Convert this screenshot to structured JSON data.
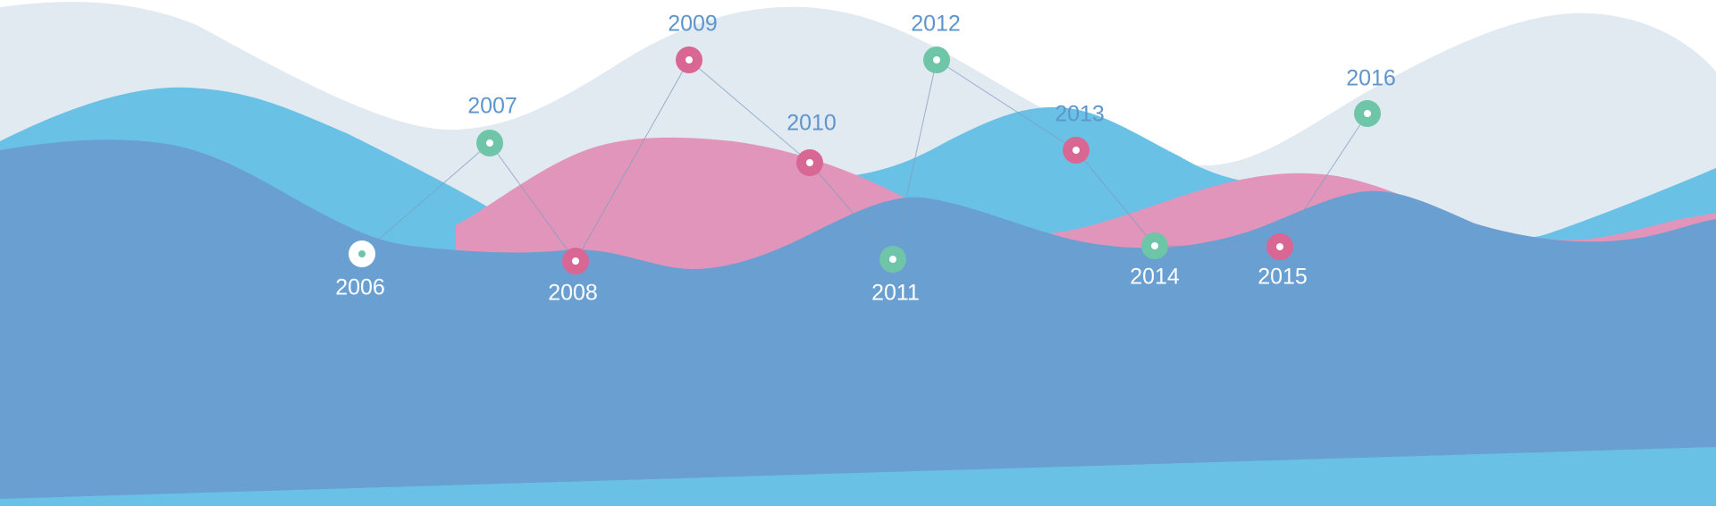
{
  "colors": {
    "background": "#ffffff",
    "wave_pale": "#e1e9f1",
    "wave_cyan": "#69c1e6",
    "wave_pink": "#e295bb",
    "wave_blue": "#6a9fd1",
    "connector": "#7f9dbf",
    "marker_green": "#6fc5a8",
    "marker_pink": "#d86794",
    "marker_white": "#ffffff",
    "label_on_light": "#5e95cd",
    "label_on_dark": "#ffffff"
  },
  "milestones": [
    {
      "year": "2006",
      "marker": "white"
    },
    {
      "year": "2007",
      "marker": "green"
    },
    {
      "year": "2008",
      "marker": "pink"
    },
    {
      "year": "2009",
      "marker": "pink"
    },
    {
      "year": "2010",
      "marker": "pink"
    },
    {
      "year": "2011",
      "marker": "green"
    },
    {
      "year": "2012",
      "marker": "green"
    },
    {
      "year": "2013",
      "marker": "pink"
    },
    {
      "year": "2014",
      "marker": "green"
    },
    {
      "year": "2015",
      "marker": "pink"
    },
    {
      "year": "2016",
      "marker": "green"
    }
  ]
}
